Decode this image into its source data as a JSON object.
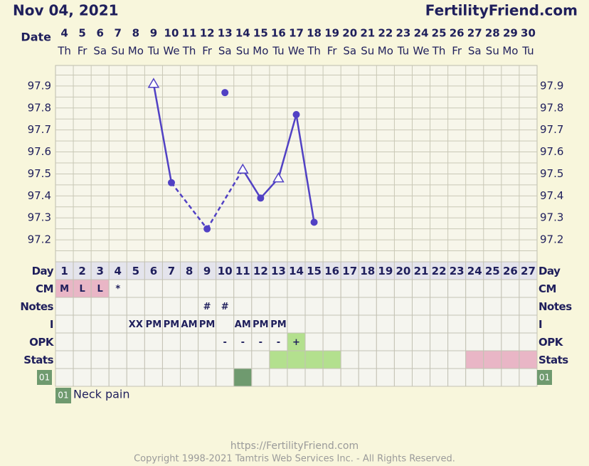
{
  "header": {
    "date": "Nov 04, 2021",
    "site": "FertilityFriend.com"
  },
  "chart_data": {
    "type": "line",
    "x_label": "Date",
    "categories": [
      "4",
      "5",
      "6",
      "7",
      "8",
      "9",
      "10",
      "11",
      "12",
      "13",
      "14",
      "15",
      "16",
      "17",
      "18",
      "19",
      "20",
      "21",
      "22",
      "23",
      "24",
      "25",
      "26",
      "27",
      "28",
      "29",
      "30"
    ],
    "weekdays": [
      "Th",
      "Fr",
      "Sa",
      "Su",
      "Mo",
      "Tu",
      "We",
      "Th",
      "Fr",
      "Sa",
      "Su",
      "Mo",
      "Tu",
      "We",
      "Th",
      "Fr",
      "Sa",
      "Su",
      "Mo",
      "Tu",
      "We",
      "Th",
      "Fr",
      "Sa",
      "Su",
      "Mo",
      "Tu"
    ],
    "values": [
      null,
      null,
      null,
      null,
      null,
      97.91,
      97.46,
      null,
      97.25,
      97.87,
      97.52,
      97.39,
      97.48,
      97.77,
      97.28,
      null,
      null,
      null,
      null,
      null,
      null,
      null,
      null,
      null,
      null,
      null,
      null
    ],
    "markers": [
      null,
      null,
      null,
      null,
      null,
      "triangle",
      "circle",
      null,
      "circle",
      "circle-unconnected",
      "triangle",
      "circle",
      "triangle",
      "circle",
      "circle",
      null,
      null,
      null,
      null,
      null,
      null,
      null,
      null,
      null,
      null,
      null,
      null
    ],
    "color": "#5141c4",
    "ylim": [
      97.1,
      98.0
    ],
    "yticks": [
      97.2,
      97.3,
      97.4,
      97.5,
      97.6,
      97.7,
      97.8,
      97.9
    ],
    "grid": [
      97.15,
      97.2,
      97.25,
      97.3,
      97.35,
      97.4,
      97.45,
      97.5,
      97.55,
      97.6,
      97.65,
      97.7,
      97.75,
      97.8,
      97.85,
      97.9,
      97.95
    ]
  },
  "table": {
    "rows": [
      {
        "label": "Day",
        "cells": [
          1,
          2,
          3,
          4,
          5,
          6,
          7,
          8,
          9,
          10,
          11,
          12,
          13,
          14,
          15,
          16,
          17,
          18,
          19,
          20,
          21,
          22,
          23,
          24,
          25,
          26,
          27
        ],
        "colors": [
          "#e4e4ec",
          "#e4e4ec",
          "#e4e4ec",
          "#e4e4ec",
          "#e4e4ec",
          "#e4e4ec",
          "#e4e4ec",
          "#e4e4ec",
          "#e4e4ec",
          "#e4e4ec",
          "#e4e4ec",
          "#e4e4ec",
          "#e4e4ec",
          "#e4e4ec",
          "#e4e4ec",
          "#e4e4ec",
          "#e4e4ec",
          "#e4e4ec",
          "#e4e4ec",
          "#e4e4ec",
          "#e4e4ec",
          "#e4e4ec",
          "#e4e4ec",
          "#e4e4ec",
          "#e4e4ec",
          "#e4e4ec",
          "#e4e4ec"
        ]
      },
      {
        "label": "CM",
        "cells": [
          "M",
          "L",
          "L",
          "*",
          null,
          null,
          null,
          null,
          null,
          null,
          null,
          null,
          null,
          null,
          null,
          null,
          null,
          null,
          null,
          null,
          null,
          null,
          null,
          null,
          null,
          null,
          null
        ],
        "colors": [
          "#e9b6c6",
          "#e9b6c6",
          "#e9b6c6",
          null,
          null,
          null,
          null,
          null,
          null,
          null,
          null,
          null,
          null,
          null,
          null,
          null,
          null,
          null,
          null,
          null,
          null,
          null,
          null,
          null,
          null,
          null,
          null
        ]
      },
      {
        "label": "Notes",
        "cells": [
          null,
          null,
          null,
          null,
          null,
          null,
          null,
          null,
          "#",
          "#",
          null,
          null,
          null,
          null,
          null,
          null,
          null,
          null,
          null,
          null,
          null,
          null,
          null,
          null,
          null,
          null,
          null
        ]
      },
      {
        "label": "I",
        "cells": [
          null,
          null,
          null,
          null,
          "XX",
          "PM",
          "PM",
          "AM",
          "PM",
          null,
          "AM",
          "PM",
          "PM",
          null,
          null,
          null,
          null,
          null,
          null,
          null,
          null,
          null,
          null,
          null,
          null,
          null,
          null
        ]
      },
      {
        "label": "OPK",
        "cells": [
          null,
          null,
          null,
          null,
          null,
          null,
          null,
          null,
          null,
          "-",
          "-",
          "-",
          "-",
          "+",
          null,
          null,
          null,
          null,
          null,
          null,
          null,
          null,
          null,
          null,
          null,
          null,
          null
        ],
        "colors": [
          null,
          null,
          null,
          null,
          null,
          null,
          null,
          null,
          null,
          null,
          null,
          null,
          null,
          "#b3e08e",
          null,
          null,
          null,
          null,
          null,
          null,
          null,
          null,
          null,
          null,
          null,
          null,
          null
        ]
      },
      {
        "label": "Stats",
        "colors": [
          null,
          null,
          null,
          null,
          null,
          null,
          null,
          null,
          null,
          null,
          null,
          null,
          "#b3e08e",
          "#b3e08e",
          "#b3e08e",
          "#b3e08e",
          null,
          null,
          null,
          null,
          null,
          null,
          null,
          "#e9b6c6",
          "#e9b6c6",
          "#e9b6c6",
          "#e9b6c6"
        ]
      },
      {
        "colors": [
          null,
          null,
          null,
          null,
          null,
          null,
          null,
          null,
          null,
          null,
          "#6f9a6f",
          null,
          null,
          null,
          null,
          null,
          null,
          null,
          null,
          null,
          null,
          null,
          null,
          null,
          null,
          null,
          null
        ]
      }
    ]
  },
  "legend": {
    "code": "01",
    "text": "Neck pain",
    "color": "#6f9a6f"
  },
  "footer": {
    "url": "https://FertilityFriend.com",
    "copyright": "Copyright 1998-2021 Tamtris Web Services Inc. - All Rights Reserved."
  }
}
